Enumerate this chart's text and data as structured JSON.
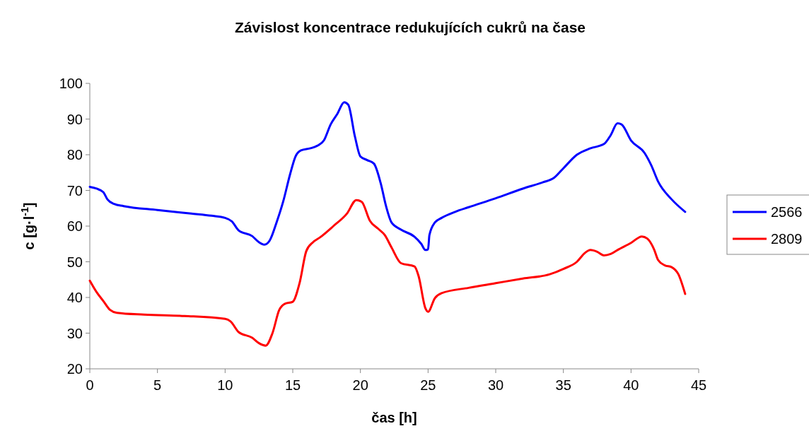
{
  "chart_data": {
    "type": "line",
    "title": "Závislost koncentrace redukujících cukrů na čase",
    "xlabel": "čas [h]",
    "ylabel": "c [g·l$^{-1}$]",
    "xlim": [
      0,
      45
    ],
    "xticks": [
      0,
      5,
      10,
      15,
      20,
      25,
      30,
      35,
      40,
      45
    ],
    "ylim": [
      20,
      100
    ],
    "yticks": [
      20,
      30,
      40,
      50,
      60,
      70,
      80,
      90,
      100
    ],
    "grid": false,
    "legend": "right",
    "marker": "none",
    "line_style": "solid",
    "series": [
      {
        "name": "2566",
        "color": "#0000ff",
        "x": [
          0,
          0.5,
          1,
          1.3,
          1.8,
          2.5,
          5,
          7.5,
          9,
          10,
          10.5,
          11,
          12,
          12.5,
          12.9,
          13.3,
          13.8,
          14.3,
          14.8,
          15.2,
          15.6,
          16.3,
          16.8,
          17.3,
          17.8,
          18.3,
          18.8,
          19.1,
          19.6,
          20,
          20.5,
          21,
          21.5,
          21.9,
          22.3,
          23,
          24,
          24.5,
          24.8,
          25,
          25.1,
          25.5,
          26,
          27,
          28,
          30,
          32,
          33.5,
          34.3,
          35,
          36,
          37,
          38,
          38.5,
          39,
          39.3,
          40,
          41,
          41.5,
          42,
          43,
          44
        ],
        "values": [
          71,
          70.5,
          69.5,
          67.5,
          66.2,
          65.6,
          64.5,
          63.5,
          62.9,
          62.3,
          61.3,
          58.8,
          57.2,
          55.5,
          54.8,
          56,
          61,
          67,
          74.5,
          79.5,
          81.2,
          81.8,
          82.5,
          84,
          88.5,
          91.5,
          94.7,
          94,
          85,
          79.5,
          78.5,
          77.5,
          72,
          65.5,
          61,
          59,
          57,
          55,
          53.3,
          53.5,
          57.5,
          61,
          62.3,
          64,
          65.3,
          67.8,
          70.5,
          72.3,
          73.5,
          76.2,
          80,
          81.8,
          83,
          85.5,
          88.8,
          88.5,
          84,
          80.5,
          77,
          72.5,
          67.5,
          64
        ]
      },
      {
        "name": "2809",
        "color": "#ff0000",
        "x": [
          0,
          0.5,
          1,
          1.5,
          2,
          4,
          7,
          10,
          10.4,
          11,
          12,
          12.5,
          13,
          13.5,
          14,
          14.4,
          15,
          15.5,
          16,
          16.5,
          17,
          18,
          19,
          19.7,
          20.1,
          20.7,
          21.3,
          21.8,
          22.3,
          23,
          24,
          24.3,
          24.8,
          25,
          25.5,
          26,
          28,
          30,
          32,
          34,
          35,
          36,
          36.6,
          37,
          37.5,
          38,
          38.5,
          39,
          40,
          40.8,
          41.2,
          41.7,
          42,
          42.5,
          43,
          43.5,
          44
        ],
        "values": [
          44.7,
          41.5,
          39,
          36.5,
          35.7,
          35.2,
          34.8,
          34,
          33.3,
          30.3,
          28.7,
          27.2,
          26.5,
          30,
          36.5,
          38.2,
          38.8,
          44,
          53,
          55.5,
          56.8,
          60,
          63.5,
          67.3,
          66.8,
          61.5,
          59.3,
          57.5,
          54,
          49.6,
          48.7,
          46,
          37,
          36,
          39.8,
          41.2,
          42.7,
          44,
          45.3,
          46.5,
          48,
          50,
          52.5,
          53.3,
          52.8,
          51.8,
          52.2,
          53.3,
          55.3,
          57.1,
          56.5,
          53.5,
          50.5,
          49,
          48.5,
          46.5,
          41
        ]
      }
    ]
  }
}
